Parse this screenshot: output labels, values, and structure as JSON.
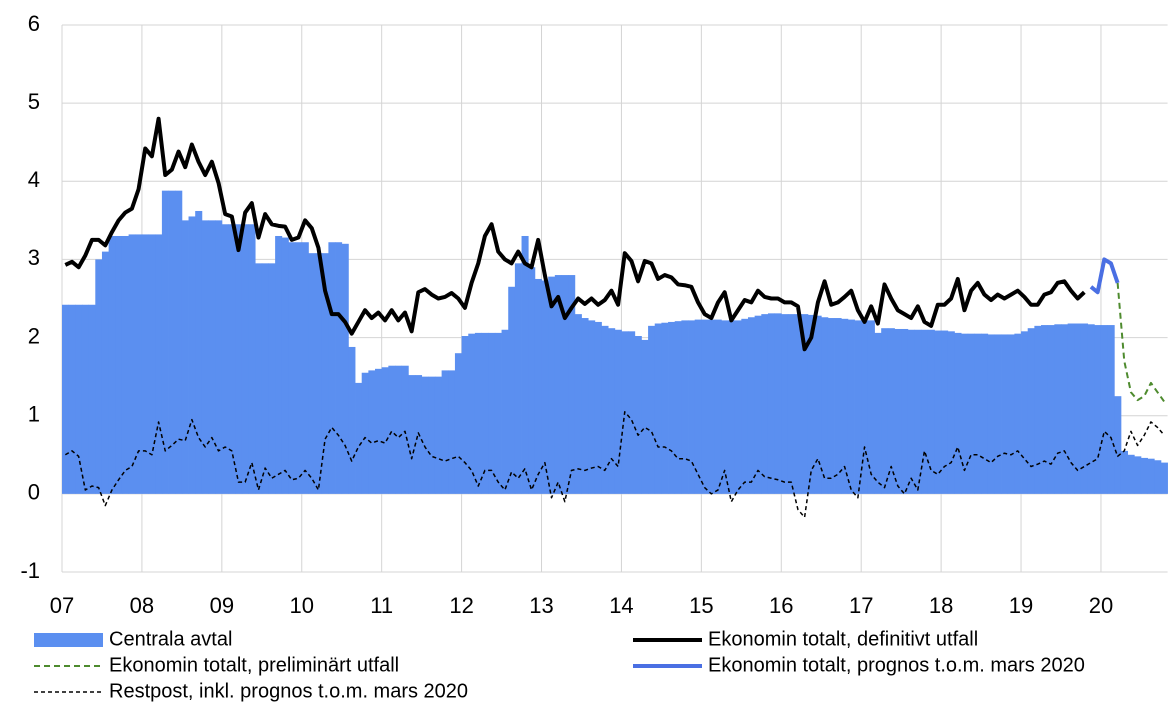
{
  "chart_data": {
    "type": "bar-line",
    "legend": "bottom",
    "grid": true,
    "ylim": [
      -1,
      6
    ],
    "yticks": [
      -1,
      0,
      1,
      2,
      3,
      4,
      5,
      6
    ],
    "categories": [
      "07",
      null,
      null,
      null,
      null,
      null,
      null,
      null,
      null,
      null,
      null,
      null,
      "08",
      null,
      null,
      null,
      null,
      null,
      null,
      null,
      null,
      null,
      null,
      null,
      "09",
      null,
      null,
      null,
      null,
      null,
      null,
      null,
      null,
      null,
      null,
      null,
      "10",
      null,
      null,
      null,
      null,
      null,
      null,
      null,
      null,
      null,
      null,
      null,
      "11",
      null,
      null,
      null,
      null,
      null,
      null,
      null,
      null,
      null,
      null,
      null,
      "12",
      null,
      null,
      null,
      null,
      null,
      null,
      null,
      null,
      null,
      null,
      null,
      "13",
      null,
      null,
      null,
      null,
      null,
      null,
      null,
      null,
      null,
      null,
      null,
      "14",
      null,
      null,
      null,
      null,
      null,
      null,
      null,
      null,
      null,
      null,
      null,
      "15",
      null,
      null,
      null,
      null,
      null,
      null,
      null,
      null,
      null,
      null,
      null,
      "16",
      null,
      null,
      null,
      null,
      null,
      null,
      null,
      null,
      null,
      null,
      null,
      "17",
      null,
      null,
      null,
      null,
      null,
      null,
      null,
      null,
      null,
      null,
      null,
      "18",
      null,
      null,
      null,
      null,
      null,
      null,
      null,
      null,
      null,
      null,
      null,
      "19",
      null,
      null,
      null,
      null,
      null,
      null,
      null,
      null,
      null,
      null,
      null,
      "20",
      null,
      null,
      null,
      null,
      null,
      null,
      null,
      null,
      null
    ],
    "series": [
      {
        "name": "Centrala avtal",
        "type": "bar",
        "color": "#5b8ff0",
        "values": [
          2.42,
          2.42,
          2.42,
          2.42,
          2.42,
          3.0,
          3.1,
          3.3,
          3.3,
          3.3,
          3.32,
          3.32,
          3.32,
          3.32,
          3.32,
          3.88,
          3.88,
          3.88,
          3.5,
          3.55,
          3.62,
          3.5,
          3.5,
          3.5,
          3.45,
          3.45,
          3.45,
          3.45,
          3.45,
          2.95,
          2.95,
          2.95,
          3.3,
          3.28,
          3.22,
          3.22,
          3.22,
          3.08,
          3.08,
          3.08,
          3.22,
          3.22,
          3.2,
          1.88,
          1.42,
          1.55,
          1.58,
          1.6,
          1.62,
          1.64,
          1.64,
          1.64,
          1.52,
          1.52,
          1.5,
          1.5,
          1.5,
          1.58,
          1.58,
          1.8,
          2.02,
          2.05,
          2.06,
          2.06,
          2.06,
          2.06,
          2.1,
          2.65,
          2.95,
          3.3,
          2.9,
          2.75,
          2.73,
          2.78,
          2.8,
          2.8,
          2.8,
          2.3,
          2.25,
          2.22,
          2.2,
          2.15,
          2.12,
          2.1,
          2.08,
          2.08,
          2.02,
          1.97,
          2.15,
          2.18,
          2.19,
          2.2,
          2.21,
          2.22,
          2.22,
          2.23,
          2.23,
          2.23,
          2.23,
          2.22,
          2.22,
          2.22,
          2.24,
          2.26,
          2.28,
          2.3,
          2.31,
          2.31,
          2.3,
          2.3,
          2.3,
          2.3,
          2.29,
          2.28,
          2.26,
          2.25,
          2.25,
          2.24,
          2.23,
          2.22,
          2.22,
          2.22,
          2.06,
          2.12,
          2.12,
          2.11,
          2.11,
          2.1,
          2.1,
          2.1,
          2.1,
          2.09,
          2.09,
          2.08,
          2.06,
          2.05,
          2.05,
          2.05,
          2.05,
          2.04,
          2.04,
          2.04,
          2.04,
          2.05,
          2.08,
          2.12,
          2.15,
          2.16,
          2.16,
          2.17,
          2.17,
          2.18,
          2.18,
          2.18,
          2.17,
          2.16,
          2.16,
          2.16,
          1.25,
          0.55,
          0.5,
          0.48,
          0.46,
          0.45,
          0.43,
          0.4
        ]
      },
      {
        "name": "Ekonomin totalt, definitivt utfall",
        "type": "line",
        "color": "#000000",
        "width": 4,
        "values": [
          2.93,
          2.97,
          2.9,
          3.05,
          3.25,
          3.25,
          3.18,
          3.35,
          3.5,
          3.6,
          3.65,
          3.9,
          4.42,
          4.32,
          4.8,
          4.08,
          4.15,
          4.38,
          4.18,
          4.47,
          4.25,
          4.08,
          4.25,
          3.98,
          3.58,
          3.55,
          3.12,
          3.6,
          3.72,
          3.28,
          3.58,
          3.45,
          3.43,
          3.42,
          3.25,
          3.28,
          3.5,
          3.4,
          3.15,
          2.6,
          2.3,
          2.3,
          2.2,
          2.05,
          2.2,
          2.35,
          2.25,
          2.32,
          2.22,
          2.35,
          2.22,
          2.32,
          2.08,
          2.58,
          2.62,
          2.55,
          2.5,
          2.52,
          2.57,
          2.5,
          2.38,
          2.7,
          2.95,
          3.3,
          3.45,
          3.1,
          3.0,
          2.95,
          3.1,
          2.95,
          2.9,
          3.25,
          2.8,
          2.4,
          2.52,
          2.25,
          2.38,
          2.5,
          2.43,
          2.5,
          2.42,
          2.48,
          2.6,
          2.42,
          3.08,
          2.98,
          2.72,
          2.98,
          2.95,
          2.75,
          2.8,
          2.77,
          2.68,
          2.67,
          2.65,
          2.45,
          2.3,
          2.25,
          2.45,
          2.58,
          2.22,
          2.35,
          2.48,
          2.45,
          2.6,
          2.52,
          2.5,
          2.5,
          2.45,
          2.45,
          2.4,
          1.85,
          2.0,
          2.45,
          2.72,
          2.42,
          2.45,
          2.52,
          2.6,
          2.35,
          2.2,
          2.4,
          2.18,
          2.68,
          2.5,
          2.35,
          2.3,
          2.25,
          2.4,
          2.2,
          2.15,
          2.42,
          2.42,
          2.5,
          2.75,
          2.35,
          2.6,
          2.7,
          2.55,
          2.48,
          2.55,
          2.5,
          2.55,
          2.6,
          2.52,
          2.42,
          2.42,
          2.55,
          2.58,
          2.7,
          2.72,
          2.6,
          2.5,
          2.58,
          null,
          null,
          null,
          null,
          null,
          null,
          null,
          null,
          null,
          null,
          null,
          null
        ]
      },
      {
        "name": "Ekonomin totalt, preliminärt utfall",
        "type": "line",
        "color": "#4e8b2e",
        "width": 2,
        "dashed": true,
        "values": [
          null,
          null,
          null,
          null,
          null,
          null,
          null,
          null,
          null,
          null,
          null,
          null,
          null,
          null,
          null,
          null,
          null,
          null,
          null,
          null,
          null,
          null,
          null,
          null,
          null,
          null,
          null,
          null,
          null,
          null,
          null,
          null,
          null,
          null,
          null,
          null,
          null,
          null,
          null,
          null,
          null,
          null,
          null,
          null,
          null,
          null,
          null,
          null,
          null,
          null,
          null,
          null,
          null,
          null,
          null,
          null,
          null,
          null,
          null,
          null,
          null,
          null,
          null,
          null,
          null,
          null,
          null,
          null,
          null,
          null,
          null,
          null,
          null,
          null,
          null,
          null,
          null,
          null,
          null,
          null,
          null,
          null,
          null,
          null,
          null,
          null,
          null,
          null,
          null,
          null,
          null,
          null,
          null,
          null,
          null,
          null,
          null,
          null,
          null,
          null,
          null,
          null,
          null,
          null,
          null,
          null,
          null,
          null,
          null,
          null,
          null,
          null,
          null,
          null,
          null,
          null,
          null,
          null,
          null,
          null,
          null,
          null,
          null,
          null,
          null,
          null,
          null,
          null,
          null,
          null,
          null,
          null,
          null,
          null,
          null,
          null,
          null,
          null,
          null,
          null,
          null,
          null,
          null,
          null,
          null,
          null,
          null,
          null,
          null,
          null,
          null,
          null,
          null,
          null,
          null,
          null,
          null,
          null,
          2.7,
          1.7,
          1.3,
          1.2,
          1.25,
          1.42,
          1.3,
          1.18
        ]
      },
      {
        "name": "Ekonomin totalt, prognos t.o.m. mars 2020",
        "type": "line",
        "color": "#4a6fe3",
        "width": 4,
        "values": [
          null,
          null,
          null,
          null,
          null,
          null,
          null,
          null,
          null,
          null,
          null,
          null,
          null,
          null,
          null,
          null,
          null,
          null,
          null,
          null,
          null,
          null,
          null,
          null,
          null,
          null,
          null,
          null,
          null,
          null,
          null,
          null,
          null,
          null,
          null,
          null,
          null,
          null,
          null,
          null,
          null,
          null,
          null,
          null,
          null,
          null,
          null,
          null,
          null,
          null,
          null,
          null,
          null,
          null,
          null,
          null,
          null,
          null,
          null,
          null,
          null,
          null,
          null,
          null,
          null,
          null,
          null,
          null,
          null,
          null,
          null,
          null,
          null,
          null,
          null,
          null,
          null,
          null,
          null,
          null,
          null,
          null,
          null,
          null,
          null,
          null,
          null,
          null,
          null,
          null,
          null,
          null,
          null,
          null,
          null,
          null,
          null,
          null,
          null,
          null,
          null,
          null,
          null,
          null,
          null,
          null,
          null,
          null,
          null,
          null,
          null,
          null,
          null,
          null,
          null,
          null,
          null,
          null,
          null,
          null,
          null,
          null,
          null,
          null,
          null,
          null,
          null,
          null,
          null,
          null,
          null,
          null,
          null,
          null,
          null,
          null,
          null,
          null,
          null,
          null,
          null,
          null,
          null,
          null,
          null,
          null,
          null,
          null,
          null,
          null,
          null,
          null,
          null,
          null,
          2.65,
          2.58,
          3.0,
          2.95,
          2.7,
          null,
          null,
          null,
          null,
          null,
          null,
          null
        ]
      },
      {
        "name": "Restpost, inkl. prognos t.o.m. mars 2020",
        "type": "line",
        "color": "#000000",
        "width": 1.5,
        "dashed": true,
        "values": [
          0.5,
          0.55,
          0.48,
          0.05,
          0.1,
          0.08,
          -0.15,
          0.05,
          0.18,
          0.3,
          0.35,
          0.55,
          0.55,
          0.5,
          0.92,
          0.55,
          0.62,
          0.7,
          0.68,
          0.95,
          0.72,
          0.6,
          0.72,
          0.55,
          0.6,
          0.55,
          0.15,
          0.15,
          0.4,
          0.05,
          0.33,
          0.2,
          0.25,
          0.3,
          0.18,
          0.2,
          0.3,
          0.2,
          0.05,
          0.7,
          0.85,
          0.75,
          0.62,
          0.42,
          0.6,
          0.72,
          0.65,
          0.68,
          0.65,
          0.8,
          0.72,
          0.8,
          0.45,
          0.78,
          0.6,
          0.48,
          0.45,
          0.42,
          0.45,
          0.48,
          0.4,
          0.3,
          0.1,
          0.3,
          0.3,
          0.15,
          0.05,
          0.28,
          0.2,
          0.32,
          0.05,
          0.25,
          0.4,
          -0.05,
          0.15,
          -0.1,
          0.3,
          0.32,
          0.3,
          0.33,
          0.35,
          0.3,
          0.45,
          0.35,
          1.05,
          0.95,
          0.75,
          0.85,
          0.8,
          0.6,
          0.6,
          0.55,
          0.45,
          0.45,
          0.42,
          0.25,
          0.08,
          0.0,
          0.05,
          0.3,
          -0.1,
          0.05,
          0.15,
          0.15,
          0.3,
          0.22,
          0.2,
          0.18,
          0.15,
          0.15,
          -0.2,
          -0.3,
          0.3,
          0.45,
          0.2,
          0.2,
          0.25,
          0.35,
          0.05,
          -0.05,
          0.6,
          0.25,
          0.15,
          0.08,
          0.35,
          0.1,
          0.0,
          0.2,
          0.05,
          0.55,
          0.3,
          0.25,
          0.35,
          0.4,
          0.6,
          0.3,
          0.5,
          0.5,
          0.45,
          0.4,
          0.48,
          0.52,
          0.5,
          0.55,
          0.45,
          0.35,
          0.38,
          0.42,
          0.38,
          0.52,
          0.55,
          0.4,
          0.3,
          0.35,
          0.4,
          0.45,
          0.8,
          0.72,
          0.48,
          0.55,
          0.8,
          0.62,
          0.75,
          0.92,
          0.85,
          0.75
        ]
      }
    ]
  }
}
